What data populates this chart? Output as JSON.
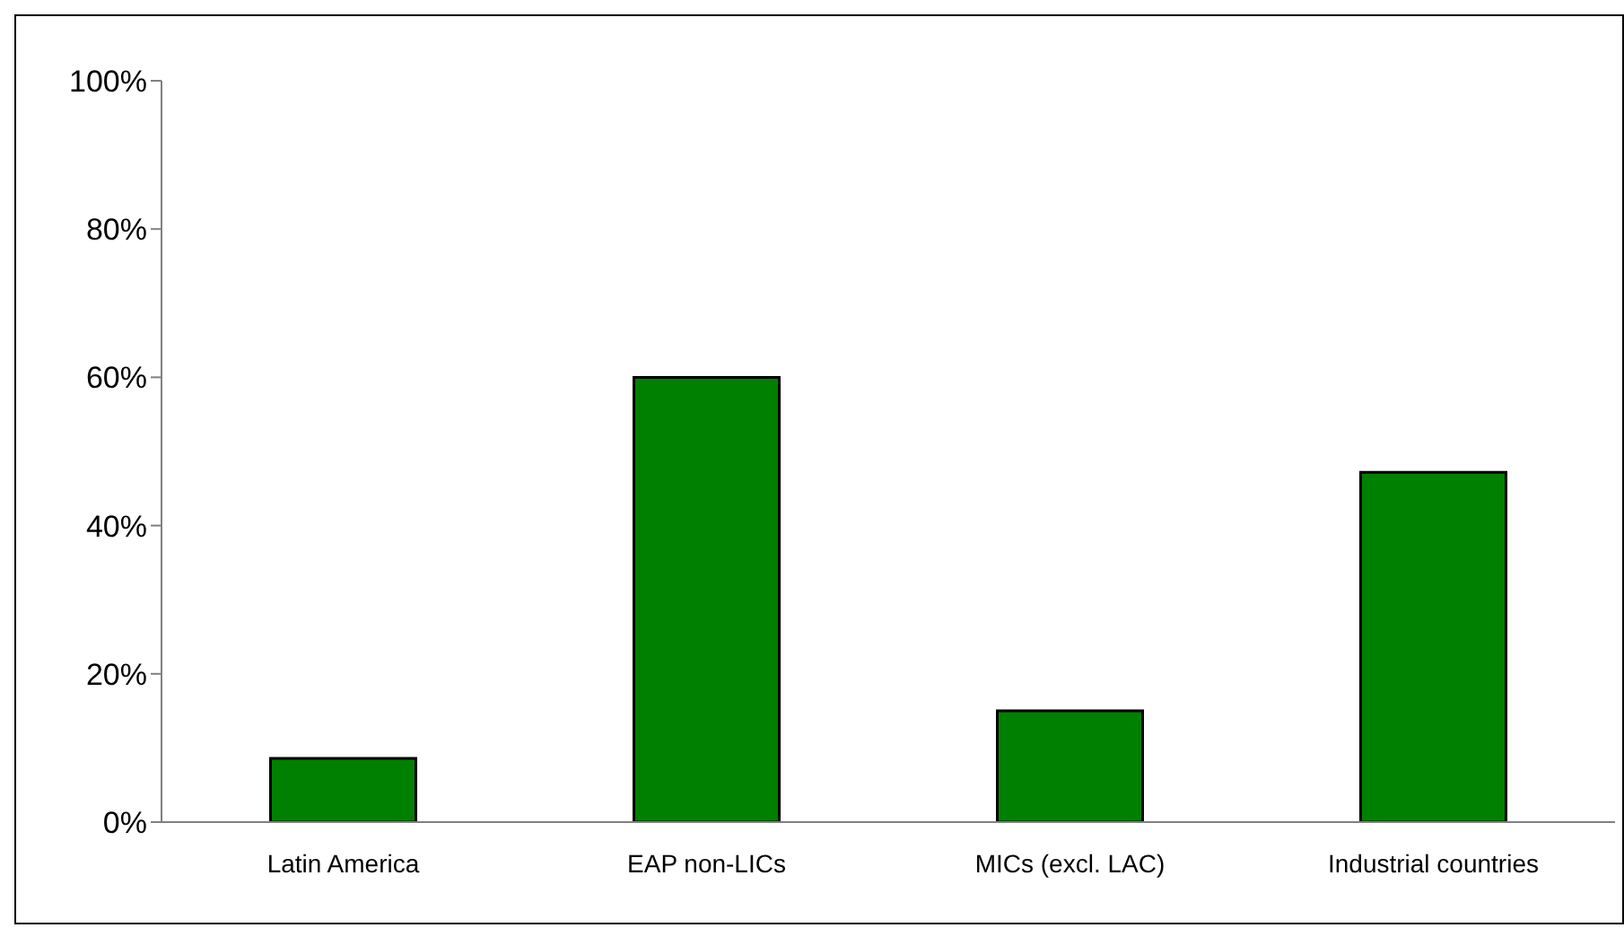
{
  "chart_data": {
    "type": "bar",
    "categories": [
      "Latin America",
      "EAP non-LICs",
      "MICs (excl. LAC)",
      "Industrial countries"
    ],
    "values": [
      8.6,
      60,
      15,
      47.2
    ],
    "color": "#008000",
    "ylim": [
      0,
      100
    ],
    "yticks": [
      {
        "value": 0,
        "label": "0%"
      },
      {
        "value": 20,
        "label": "20%"
      },
      {
        "value": 40,
        "label": "40%"
      },
      {
        "value": 60,
        "label": "60%"
      },
      {
        "value": 80,
        "label": "80%"
      },
      {
        "value": 100,
        "label": "100%"
      }
    ],
    "grid": false,
    "legend": false
  }
}
